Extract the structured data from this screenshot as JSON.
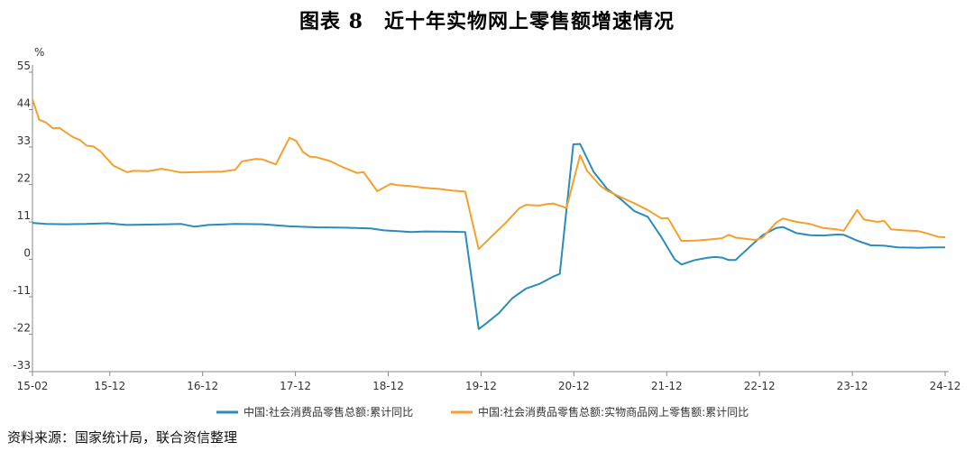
{
  "title": "图表 8　近十年实物网上零售额增速情况",
  "source": "资料来源：国家统计局，联合资信整理",
  "chart_data": {
    "type": "line",
    "ylabel": "%",
    "ylim": [
      -33,
      55
    ],
    "yticks": [
      -33,
      -22,
      -11,
      0,
      11,
      22,
      33,
      44,
      55
    ],
    "xticks": [
      "15-02",
      "15-12",
      "16-12",
      "17-12",
      "18-12",
      "19-12",
      "20-12",
      "21-12",
      "22-12",
      "23-12",
      "24-12"
    ],
    "grid": false,
    "legend_position": "bottom",
    "series": [
      {
        "name": "中国:社会消费品零售总额:累计同比",
        "color": "#2b8cb8",
        "points": [
          [
            0,
            10.7
          ],
          [
            2,
            10.4
          ],
          [
            5,
            10.3
          ],
          [
            8,
            10.4
          ],
          [
            11,
            10.6
          ],
          [
            14,
            10.1
          ],
          [
            17,
            10.2
          ],
          [
            20,
            10.3
          ],
          [
            22,
            10.4
          ],
          [
            24,
            9.6
          ],
          [
            26,
            10.1
          ],
          [
            30,
            10.4
          ],
          [
            34,
            10.3
          ],
          [
            38,
            9.7
          ],
          [
            42,
            9.4
          ],
          [
            46,
            9.3
          ],
          [
            50,
            9.1
          ],
          [
            52,
            8.5
          ],
          [
            54,
            8.3
          ],
          [
            56,
            8.0
          ],
          [
            58,
            8.2
          ],
          [
            62,
            8.1
          ],
          [
            64,
            8.0
          ],
          [
            66,
            -20.5
          ],
          [
            67,
            -19.0
          ],
          [
            69,
            -15.8
          ],
          [
            71,
            -11.4
          ],
          [
            73,
            -8.6
          ],
          [
            75,
            -7.2
          ],
          [
            77,
            -5.1
          ],
          [
            78,
            -4.3
          ],
          [
            80,
            33.8
          ],
          [
            81,
            33.9
          ],
          [
            83,
            25.7
          ],
          [
            85,
            20.7
          ],
          [
            87,
            17.7
          ],
          [
            89,
            14.2
          ],
          [
            91,
            12.5
          ],
          [
            93,
            6.6
          ],
          [
            95,
            0.0
          ],
          [
            96,
            -1.5
          ],
          [
            98,
            -0.2
          ],
          [
            100,
            0.5
          ],
          [
            101,
            0.7
          ],
          [
            102,
            0.5
          ],
          [
            103,
            -0.2
          ],
          [
            104,
            -0.2
          ],
          [
            106,
            3.5
          ],
          [
            108,
            7.1
          ],
          [
            110,
            9.2
          ],
          [
            111,
            9.5
          ],
          [
            113,
            7.7
          ],
          [
            115,
            7.1
          ],
          [
            117,
            7.0
          ],
          [
            119,
            7.3
          ],
          [
            120,
            7.2
          ],
          [
            122,
            5.5
          ],
          [
            124,
            4.1
          ],
          [
            126,
            4.0
          ],
          [
            128,
            3.5
          ],
          [
            131,
            3.4
          ],
          [
            133,
            3.5
          ],
          [
            135,
            3.5
          ]
        ]
      },
      {
        "name": "中国:社会消费品零售总额:实物商品网上零售额:累计同比",
        "color": "#f5a02d",
        "points": [
          [
            0,
            47.0
          ],
          [
            1,
            41.0
          ],
          [
            2,
            40.2
          ],
          [
            3,
            38.5
          ],
          [
            4,
            38.6
          ],
          [
            6,
            35.9
          ],
          [
            7,
            35.1
          ],
          [
            8,
            33.4
          ],
          [
            9,
            33.2
          ],
          [
            10,
            31.8
          ],
          [
            12,
            27.5
          ],
          [
            14,
            25.6
          ],
          [
            15,
            26.0
          ],
          [
            17,
            25.9
          ],
          [
            18,
            26.2
          ],
          [
            19,
            26.6
          ],
          [
            20,
            26.3
          ],
          [
            22,
            25.5
          ],
          [
            24,
            25.6
          ],
          [
            26,
            25.7
          ],
          [
            28,
            25.8
          ],
          [
            30,
            26.3
          ],
          [
            31,
            28.8
          ],
          [
            33,
            29.5
          ],
          [
            34,
            29.4
          ],
          [
            35,
            28.6
          ],
          [
            36,
            27.9
          ],
          [
            38,
            35.7
          ],
          [
            39,
            34.8
          ],
          [
            40,
            31.6
          ],
          [
            41,
            30.2
          ],
          [
            42,
            30.0
          ],
          [
            44,
            28.9
          ],
          [
            46,
            27.0
          ],
          [
            48,
            25.4
          ],
          [
            49,
            25.6
          ],
          [
            51,
            20.0
          ],
          [
            53,
            22.2
          ],
          [
            54,
            21.8
          ],
          [
            56,
            21.5
          ],
          [
            58,
            21.0
          ],
          [
            60,
            20.7
          ],
          [
            62,
            20.2
          ],
          [
            64,
            19.9
          ],
          [
            66,
            3.0
          ],
          [
            68,
            6.9
          ],
          [
            70,
            10.7
          ],
          [
            72,
            15.0
          ],
          [
            73,
            16.0
          ],
          [
            75,
            15.8
          ],
          [
            76,
            16.2
          ],
          [
            77,
            16.4
          ],
          [
            79,
            15.1
          ],
          [
            81,
            30.6
          ],
          [
            82,
            26.1
          ],
          [
            84,
            21.6
          ],
          [
            85,
            20.2
          ],
          [
            87,
            18.3
          ],
          [
            89,
            16.5
          ],
          [
            91,
            14.5
          ],
          [
            93,
            12.0
          ],
          [
            94,
            12.1
          ],
          [
            96,
            5.4
          ],
          [
            98,
            5.5
          ],
          [
            100,
            5.8
          ],
          [
            102,
            6.2
          ],
          [
            103,
            7.2
          ],
          [
            104,
            6.4
          ],
          [
            106,
            5.9
          ],
          [
            107,
            5.7
          ],
          [
            108,
            6.4
          ],
          [
            110,
            10.8
          ],
          [
            111,
            12.0
          ],
          [
            113,
            11.0
          ],
          [
            115,
            10.4
          ],
          [
            117,
            9.2
          ],
          [
            119,
            8.8
          ],
          [
            120,
            8.4
          ],
          [
            122,
            14.5
          ],
          [
            123,
            11.7
          ],
          [
            125,
            11.0
          ],
          [
            126,
            11.3
          ],
          [
            127,
            8.8
          ],
          [
            129,
            8.5
          ],
          [
            131,
            8.3
          ],
          [
            132,
            7.8
          ],
          [
            134,
            6.6
          ],
          [
            135,
            6.5
          ]
        ]
      }
    ]
  }
}
